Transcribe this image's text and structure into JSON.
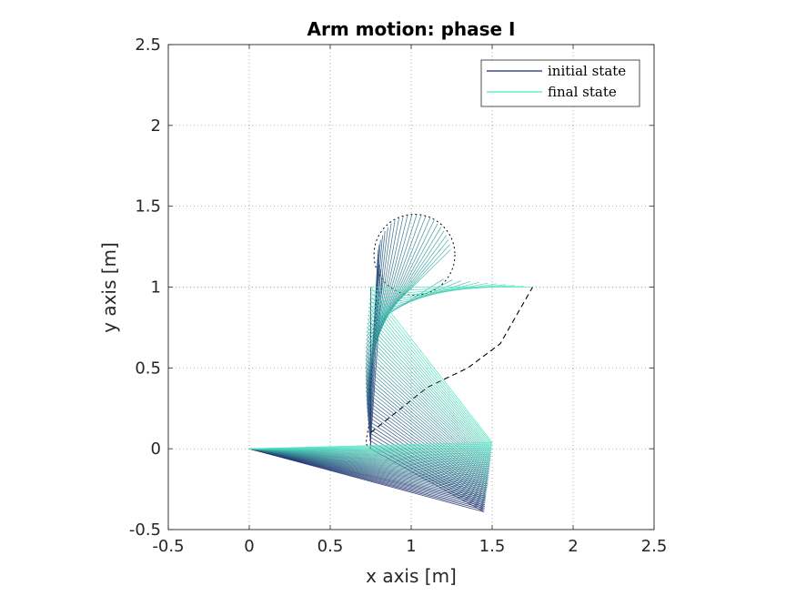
{
  "chart_data": {
    "type": "line",
    "title": "Arm motion: phase I",
    "xlabel": "x axis [m]",
    "ylabel": "y axis [m]",
    "xlim": [
      -0.5,
      2.5
    ],
    "ylim": [
      -0.5,
      2.5
    ],
    "xticks": [
      "-0.5",
      "0",
      "0.5",
      "1",
      "1.5",
      "2",
      "2.5"
    ],
    "yticks": [
      "-0.5",
      "0",
      "0.5",
      "1",
      "1.5",
      "2",
      "2.5"
    ],
    "grid": true,
    "legend_position": "top-right",
    "legend": [
      {
        "name": "initial state",
        "color": "#1b2a6b"
      },
      {
        "name": "final state",
        "color": "#4ee6c0"
      }
    ],
    "base": [
      0,
      0
    ],
    "series": {
      "elbow_initial": [
        1.45,
        -0.39
      ],
      "elbow_final": [
        1.5,
        0.04
      ],
      "wrist_initial": [
        0.75,
        0.0
      ],
      "wrist_final": [
        0.75,
        1.0
      ],
      "tip_initial": [
        0.75,
        1.0
      ],
      "tip_final": [
        1.75,
        1.0
      ],
      "tip_circle": {
        "center": [
          1.02,
          1.2
        ],
        "radius": 0.25
      },
      "tip_path_dashed": [
        [
          0.75,
          0.1
        ],
        [
          1.1,
          0.38
        ],
        [
          1.35,
          0.5
        ],
        [
          1.55,
          0.65
        ],
        [
          1.75,
          1.0
        ]
      ],
      "wrist_path_dashed": [
        [
          0.75,
          0.0
        ],
        [
          0.72,
          0.03
        ],
        [
          0.73,
          0.1
        ],
        [
          0.75,
          0.2
        ],
        [
          0.75,
          1.0
        ]
      ]
    },
    "frames": 40
  },
  "colors": {
    "initial": "#1b2a6b",
    "final": "#4ee6c0"
  }
}
